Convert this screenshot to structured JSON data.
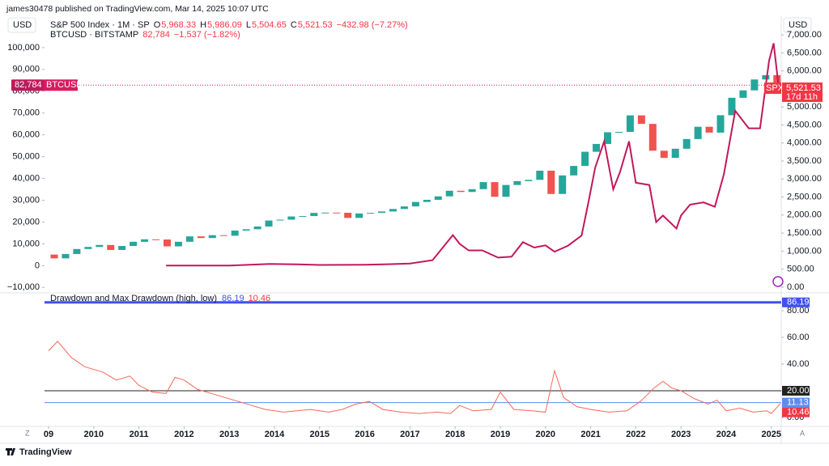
{
  "header": "james30478 published on TradingView.com, Mar 14, 2025 10:07 UTC",
  "ui": {
    "scale_left_mode": "Z",
    "scale_right_mode": "A",
    "brand": "TradingView"
  },
  "chart_data": [
    {
      "type": "candlestick",
      "ylabel": "USD",
      "y2label": "USD",
      "xlim": [
        2008.9,
        2025.4
      ],
      "xticks": [
        {
          "value": 2009,
          "label": "09"
        },
        2010,
        2011,
        2012,
        2013,
        2014,
        2015,
        2016,
        2017,
        2018,
        2019,
        2020,
        2021,
        2022,
        2023,
        2024,
        2025
      ],
      "ylim": [
        -11000,
        107000
      ],
      "yticks": [
        {
          "value": -10000,
          "label": "−10,000"
        },
        0,
        {
          "value": 10000,
          "label": "10,000"
        },
        {
          "value": 20000,
          "label": "20,000"
        },
        {
          "value": 30000,
          "label": "30,000"
        },
        {
          "value": 40000,
          "label": "40,000"
        },
        {
          "value": 50000,
          "label": "50,000"
        },
        {
          "value": 60000,
          "label": "60,000"
        },
        {
          "value": 70000,
          "label": "70,000"
        },
        {
          "value": 80000,
          "label": "80,000"
        },
        {
          "value": 90000,
          "label": "90,000"
        },
        {
          "value": 100000,
          "label": "100,000"
        }
      ],
      "y2lim": [
        -70,
        7070
      ],
      "y2ticks": [
        {
          "value": 0,
          "label": "0.00"
        },
        {
          "value": 500,
          "label": "500.00"
        },
        {
          "value": 1000,
          "label": "1,000.00"
        },
        {
          "value": 1500,
          "label": "1,500.00"
        },
        {
          "value": 2000,
          "label": "2,000.00"
        },
        {
          "value": 2500,
          "label": "2,500.00"
        },
        {
          "value": 3000,
          "label": "3,000.00"
        },
        {
          "value": 3500,
          "label": "3,500.00"
        },
        {
          "value": 4000,
          "label": "4,000.00"
        },
        {
          "value": 4500,
          "label": "4,500.00"
        },
        {
          "value": 5000,
          "label": "5,000.00"
        },
        {
          "value": 5500,
          "label": "5,500.00"
        },
        {
          "value": 6000,
          "label": "6,000.00"
        },
        {
          "value": 6500,
          "label": "6,500.00"
        },
        {
          "value": 7000,
          "label": "7,000.00"
        }
      ],
      "series": [
        {
          "type": "candlestick",
          "axis": "y2",
          "name": "S&P 500 Index · 1M · SP",
          "short_name": "SPX",
          "up_color": "#26a69a",
          "down_color": "#ef5350",
          "legend_values": [
            "O",
            "5,968.33",
            "H",
            "5,986.09",
            "L",
            "5,504.65",
            "C",
            "5,521.53",
            "−432.98 (−7.27%)"
          ],
          "x": [
            2009.125,
            2009.375,
            2009.625,
            2009.875,
            2010.125,
            2010.375,
            2010.625,
            2010.875,
            2011.125,
            2011.375,
            2011.625,
            2011.875,
            2012.125,
            2012.375,
            2012.625,
            2012.875,
            2013.125,
            2013.375,
            2013.625,
            2013.875,
            2014.125,
            2014.375,
            2014.625,
            2014.875,
            2015.125,
            2015.375,
            2015.625,
            2015.875,
            2016.125,
            2016.375,
            2016.625,
            2016.875,
            2017.125,
            2017.375,
            2017.625,
            2017.875,
            2018.125,
            2018.375,
            2018.625,
            2018.875,
            2019.125,
            2019.375,
            2019.625,
            2019.875,
            2020.125,
            2020.375,
            2020.625,
            2020.875,
            2021.125,
            2021.375,
            2021.625,
            2021.875,
            2022.125,
            2022.375,
            2022.625,
            2022.875,
            2023.125,
            2023.375,
            2023.625,
            2023.875,
            2024.125,
            2024.375,
            2024.625,
            2024.875,
            2025.125
          ],
          "open": [
            903,
            798,
            919,
            1057,
            1115,
            1169,
            1031,
            1141,
            1258,
            1326,
            1321,
            1131,
            1258,
            1408,
            1362,
            1441,
            1426,
            1569,
            1606,
            1682,
            1848,
            1872,
            1960,
            1972,
            2059,
            2068,
            2063,
            1920,
            2044,
            2060,
            2099,
            2168,
            2239,
            2363,
            2423,
            2519,
            2674,
            2641,
            2718,
            2914,
            2507,
            2834,
            2942,
            2977,
            3231,
            2585,
            3100,
            3363,
            3756,
            3973,
            4298,
            4308,
            4766,
            4530,
            3785,
            3586,
            3840,
            4109,
            4450,
            4288,
            4770,
            5254,
            5460,
            5762,
            5882
          ],
          "close": [
            798,
            919,
            1057,
            1115,
            1169,
            1031,
            1141,
            1258,
            1326,
            1321,
            1131,
            1258,
            1408,
            1362,
            1441,
            1426,
            1569,
            1606,
            1682,
            1848,
            1872,
            1960,
            1972,
            2059,
            2068,
            2063,
            1920,
            2044,
            2060,
            2099,
            2168,
            2239,
            2363,
            2423,
            2519,
            2674,
            2641,
            2718,
            2914,
            2507,
            2834,
            2942,
            2977,
            3231,
            2585,
            3100,
            3363,
            3756,
            3973,
            4298,
            4308,
            4766,
            4530,
            3785,
            3586,
            3840,
            4109,
            4450,
            4288,
            4770,
            5254,
            5460,
            5762,
            5882,
            5521.53
          ],
          "last": {
            "value": 5521.53,
            "label": "5,521.53"
          },
          "countdown": "17d 11h",
          "color": "#f23645"
        },
        {
          "type": "line",
          "axis": "y",
          "name": "BTCUSD · BITSTAMP",
          "short_name": "BTCUSD",
          "color": "#c2185b",
          "legend_values": [
            "82,784",
            "−1,537 (−1.82%)"
          ],
          "x": [
            2011.6,
            2013.0,
            2013.9,
            2014.5,
            2015.0,
            2016.0,
            2016.5,
            2017.0,
            2017.5,
            2017.95,
            2018.1,
            2018.3,
            2018.6,
            2018.95,
            2019.25,
            2019.5,
            2019.75,
            2020.0,
            2020.2,
            2020.5,
            2020.8,
            2020.95,
            2021.1,
            2021.3,
            2021.5,
            2021.65,
            2021.85,
            2022.0,
            2022.3,
            2022.45,
            2022.6,
            2022.9,
            2023.0,
            2023.2,
            2023.5,
            2023.75,
            2023.95,
            2024.2,
            2024.5,
            2024.75,
            2024.95,
            2025.05,
            2025.15,
            2025.2
          ],
          "values": [
            5,
            13,
            800,
            600,
            300,
            400,
            650,
            1000,
            2500,
            14000,
            10000,
            7000,
            7000,
            3700,
            4100,
            10800,
            8300,
            9300,
            6400,
            9200,
            13800,
            29000,
            45000,
            57000,
            35000,
            43000,
            57000,
            38000,
            37000,
            20000,
            23000,
            17000,
            23000,
            28000,
            29000,
            27000,
            42000,
            71000,
            63000,
            63000,
            94000,
            102000,
            84000,
            82784
          ],
          "last": {
            "value": 82784,
            "label": "82,784"
          }
        }
      ]
    },
    {
      "type": "line",
      "title": "Drawdown and Max Drawdown (high, low)",
      "header_values": [
        "86.19",
        "10.46"
      ],
      "ylim": [
        -5.45,
        90.9
      ],
      "yticks": [
        {
          "value": 0,
          "label": "0.00"
        },
        {
          "value": 20,
          "label": "20.00"
        },
        {
          "value": 40,
          "label": "40.00"
        },
        {
          "value": 60,
          "label": "60.00"
        },
        {
          "value": 80,
          "label": "80.00"
        }
      ],
      "series": [
        {
          "name": "Drawdown",
          "color": "#f7675a",
          "x": [
            2009.0,
            2009.2,
            2009.5,
            2009.8,
            2010.2,
            2010.5,
            2010.8,
            2011.0,
            2011.3,
            2011.6,
            2011.8,
            2012.0,
            2012.3,
            2012.6,
            2012.9,
            2013.2,
            2013.5,
            2013.8,
            2014.2,
            2014.5,
            2014.8,
            2015.2,
            2015.5,
            2015.8,
            2016.1,
            2016.4,
            2016.8,
            2017.2,
            2017.6,
            2017.9,
            2018.1,
            2018.4,
            2018.8,
            2019.0,
            2019.3,
            2019.7,
            2020.0,
            2020.2,
            2020.4,
            2020.7,
            2021.0,
            2021.4,
            2021.8,
            2022.1,
            2022.4,
            2022.6,
            2022.8,
            2023.0,
            2023.3,
            2023.6,
            2023.8,
            2024.0,
            2024.3,
            2024.6,
            2024.9,
            2025.0,
            2025.2
          ],
          "values": [
            50,
            57,
            45,
            38,
            34,
            28,
            31,
            24,
            19,
            18,
            30,
            28,
            21,
            18,
            15,
            12,
            9,
            6,
            4,
            5,
            6,
            4,
            6,
            10,
            12,
            6,
            4,
            3,
            4,
            3,
            9,
            5,
            6,
            19,
            6,
            5,
            4,
            35,
            15,
            8,
            6,
            4,
            5,
            12,
            22,
            27,
            22,
            20,
            14,
            10,
            13,
            5,
            7,
            4,
            5,
            3,
            10.46
          ],
          "last": {
            "value": 10.46,
            "label": "10.46"
          },
          "label_color": "#f23645"
        }
      ],
      "hlines": [
        {
          "value": 86.19,
          "label": "86.19",
          "color": "#3f51f0",
          "width": 3
        },
        {
          "value": 20,
          "label": "20.00",
          "color": "#222222",
          "width": 1
        },
        {
          "value": 11.13,
          "label": "11.13",
          "color": "#5b8def",
          "width": 1
        }
      ]
    }
  ]
}
